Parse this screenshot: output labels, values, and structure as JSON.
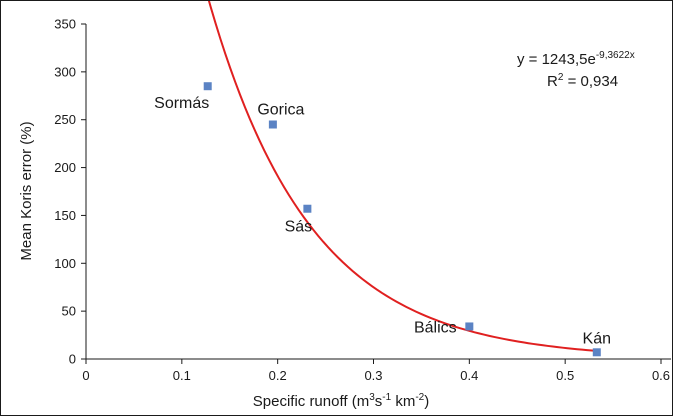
{
  "chart_data": {
    "type": "scatter",
    "title": "",
    "xlabel": {
      "prefix": "Specific runoff (m",
      "sup1": "3",
      "mid1": "s",
      "sup2": "-1",
      "mid2": " km",
      "sup3": "-2",
      "suffix": ")"
    },
    "ylabel": "Mean Koris error (%)",
    "xlim": [
      0,
      0.6
    ],
    "ylim": [
      0,
      350
    ],
    "x_ticks": [
      0,
      0.1,
      0.2,
      0.3,
      0.4,
      0.5,
      0.6
    ],
    "x_tick_labels": [
      "0",
      "0.1",
      "0.2",
      "0.3",
      "0.4",
      "0.5",
      "0.6"
    ],
    "y_ticks": [
      0,
      50,
      100,
      150,
      200,
      250,
      300,
      350
    ],
    "y_tick_labels": [
      "0",
      "50",
      "100",
      "150",
      "200",
      "250",
      "300",
      "350"
    ],
    "grid": false,
    "points": [
      {
        "label": "Sormás",
        "x": 0.127,
        "y": 285
      },
      {
        "label": "Gorica",
        "x": 0.195,
        "y": 245
      },
      {
        "label": "Sás",
        "x": 0.231,
        "y": 157
      },
      {
        "label": "Bálics",
        "x": 0.4,
        "y": 34
      },
      {
        "label": "Kán",
        "x": 0.533,
        "y": 7
      }
    ],
    "marker_color": "#5b83c4",
    "trendline": {
      "type": "exponential",
      "a": 1243.5,
      "b": -9.3622,
      "x_range": [
        0.125,
        0.533
      ],
      "color": "#e02020",
      "equation_prefix": "y = 1243,5e",
      "equation_exponent": "-9,3622x",
      "r2_prefix": "R",
      "r2_sup": "2",
      "r2_value": " = 0,934"
    }
  }
}
